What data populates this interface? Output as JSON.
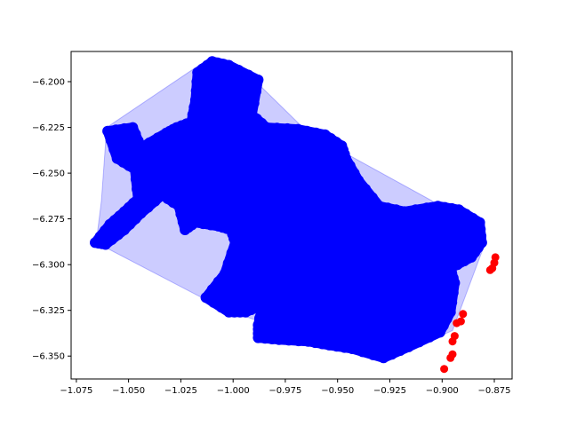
{
  "chart_data": {
    "type": "scatter",
    "title": "",
    "xlabel": "",
    "ylabel": "",
    "xlim": [
      -1.0775,
      -0.8665
    ],
    "ylim": [
      -6.3625,
      -6.1835
    ],
    "grid": false,
    "legend": "none",
    "x_ticks": [
      -1.075,
      -1.05,
      -1.025,
      -1.0,
      -0.975,
      -0.95,
      -0.925,
      -0.9,
      -0.875
    ],
    "x_tick_labels": [
      "−1.075",
      "−1.050",
      "−1.025",
      "−1.000",
      "−0.975",
      "−0.950",
      "−0.925",
      "−0.900",
      "−0.875"
    ],
    "y_ticks": [
      -6.2,
      -6.225,
      -6.25,
      -6.275,
      -6.3,
      -6.325,
      -6.35
    ],
    "y_tick_labels": [
      "−6.200",
      "−6.225",
      "−6.250",
      "−6.275",
      "−6.300",
      "−6.325",
      "−6.350"
    ],
    "colors": {
      "main_points": "#0000ff",
      "outlier_points": "#ff0000",
      "hull_fill": "#0000ff",
      "hull_fill_opacity": 0.2
    },
    "hull": [
      [
        -1.0655,
        -6.288
      ],
      [
        -1.063,
        -6.265
      ],
      [
        -1.0605,
        -6.225
      ],
      [
        -1.015,
        -6.19
      ],
      [
        -0.989,
        -6.2
      ],
      [
        -0.964,
        -6.228
      ],
      [
        -0.905,
        -6.265
      ],
      [
        -0.88,
        -6.29
      ],
      [
        -0.895,
        -6.336
      ],
      [
        -0.923,
        -6.35
      ],
      [
        -0.954,
        -6.344
      ],
      [
        -0.995,
        -6.328
      ],
      [
        -1.015,
        -6.318
      ]
    ],
    "blue_region": [
      [
        -1.066,
        -6.288
      ],
      [
        -1.059,
        -6.278
      ],
      [
        -1.052,
        -6.271
      ],
      [
        -1.0455,
        -6.264
      ],
      [
        -1.047,
        -6.248
      ],
      [
        -1.0555,
        -6.242
      ],
      [
        -1.06,
        -6.227
      ],
      [
        -1.048,
        -6.225
      ],
      [
        -1.044,
        -6.236
      ],
      [
        -1.032,
        -6.228
      ],
      [
        -1.027,
        -6.225
      ],
      [
        -1.02,
        -6.222
      ],
      [
        -1.018,
        -6.21
      ],
      [
        -1.017,
        -6.195
      ],
      [
        -1.01,
        -6.189
      ],
      [
        -1.002,
        -6.191
      ],
      [
        -0.988,
        -6.199
      ],
      [
        -0.991,
        -6.218
      ],
      [
        -0.984,
        -6.225
      ],
      [
        -0.969,
        -6.226
      ],
      [
        -0.956,
        -6.229
      ],
      [
        -0.948,
        -6.235
      ],
      [
        -0.946,
        -6.242
      ],
      [
        -0.94,
        -6.254
      ],
      [
        -0.93,
        -6.268
      ],
      [
        -0.918,
        -6.271
      ],
      [
        -0.902,
        -6.268
      ],
      [
        -0.892,
        -6.27
      ],
      [
        -0.882,
        -6.277
      ],
      [
        -0.881,
        -6.288
      ],
      [
        -0.886,
        -6.296
      ],
      [
        -0.896,
        -6.302
      ],
      [
        -0.894,
        -6.31
      ],
      [
        -0.896,
        -6.326
      ],
      [
        -0.901,
        -6.337
      ],
      [
        -0.916,
        -6.345
      ],
      [
        -0.928,
        -6.351
      ],
      [
        -0.943,
        -6.346
      ],
      [
        -0.954,
        -6.344
      ],
      [
        -0.964,
        -6.342
      ],
      [
        -0.978,
        -6.341
      ],
      [
        -0.988,
        -6.34
      ],
      [
        -0.988,
        -6.333
      ],
      [
        -0.986,
        -6.322
      ],
      [
        -0.994,
        -6.326
      ],
      [
        -1.002,
        -6.326
      ],
      [
        -1.013,
        -6.318
      ],
      [
        -1.004,
        -6.305
      ],
      [
        -0.999,
        -6.288
      ],
      [
        -1.001,
        -6.281
      ],
      [
        -1.007,
        -6.279
      ],
      [
        -1.018,
        -6.277
      ],
      [
        -1.023,
        -6.281
      ],
      [
        -1.026,
        -6.268
      ],
      [
        -1.034,
        -6.262
      ],
      [
        -1.044,
        -6.272
      ],
      [
        -1.052,
        -6.281
      ],
      [
        -1.061,
        -6.289
      ]
    ],
    "outlier_points": [
      [
        -0.8745,
        -6.296
      ],
      [
        -0.875,
        -6.299
      ],
      [
        -0.876,
        -6.302
      ],
      [
        -0.877,
        -6.303
      ],
      [
        -0.89,
        -6.327
      ],
      [
        -0.891,
        -6.331
      ],
      [
        -0.893,
        -6.332
      ],
      [
        -0.894,
        -6.339
      ],
      [
        -0.895,
        -6.342
      ],
      [
        -0.895,
        -6.349
      ],
      [
        -0.896,
        -6.351
      ],
      [
        -0.899,
        -6.357
      ]
    ]
  }
}
